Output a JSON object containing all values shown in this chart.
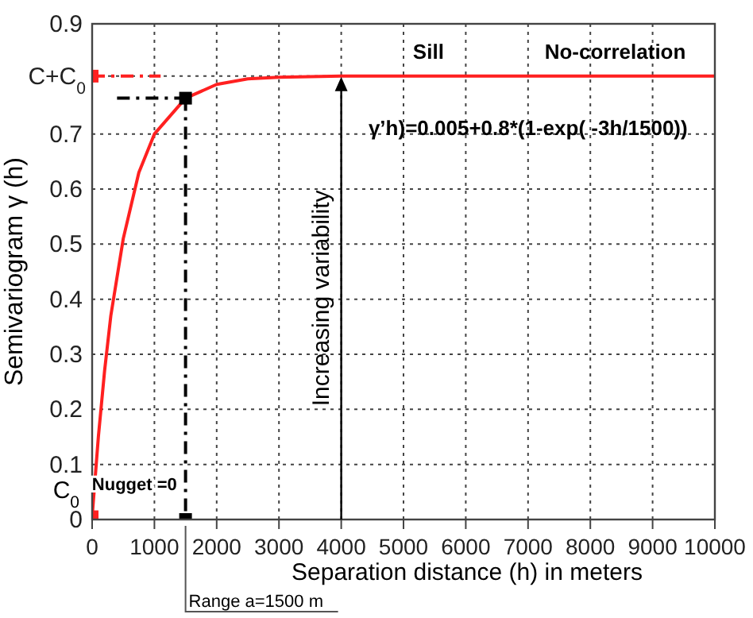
{
  "chart_data": {
    "type": "line",
    "xlabel": "Separation distance (h) in meters",
    "ylabel": "Semivariogram γ (h)",
    "xlim": [
      0,
      10000
    ],
    "xticks": [
      0,
      1000,
      2000,
      3000,
      4000,
      5000,
      6000,
      7000,
      8000,
      9000,
      10000
    ],
    "ylim": [
      0,
      0.9
    ],
    "yticks": [
      0,
      0.1,
      0.2,
      0.3,
      0.4,
      0.5,
      0.6,
      0.7,
      0.9
    ],
    "grid": true,
    "ref_lines": [
      {
        "axis": "y",
        "value": 0.805,
        "label": "C+C$_{0}$",
        "color": "#444444",
        "line_style": "dotted"
      }
    ],
    "series": [
      {
        "color": "#ff2020",
        "marker": "none",
        "line_style": "solid",
        "x": [
          0,
          100,
          200,
          300,
          500,
          750,
          1000,
          1500,
          2000,
          2500,
          3000,
          4000,
          10000
        ],
        "values": [
          0.005,
          0.15,
          0.27,
          0.37,
          0.51,
          0.63,
          0.7,
          0.765,
          0.79,
          0.8,
          0.803,
          0.805,
          0.805
        ]
      },
      {
        "color": "#ff2020",
        "marker": "none",
        "line_style": "dashed",
        "x": [
          0,
          1100
        ],
        "values": [
          0.805,
          0.805
        ]
      },
      {
        "color": "#000000",
        "marker": "none",
        "line_style": "dashed",
        "x": [
          400,
          1500
        ],
        "values": [
          0.765,
          0.765
        ]
      },
      {
        "color": "#000000",
        "marker": "none",
        "line_style": "dashed",
        "x": [
          1500,
          1500
        ],
        "values": [
          0.765,
          0
        ]
      },
      {
        "type": "scatter",
        "color": "#ff2020",
        "marker": "square",
        "x": [
          0,
          0
        ],
        "values": [
          0.805,
          0.005
        ]
      },
      {
        "type": "scatter",
        "color": "#000000",
        "marker": "square",
        "x": [
          1500,
          1500
        ],
        "values": [
          0.765,
          0
        ]
      }
    ],
    "annotations": [
      "Sill",
      "No-correlation",
      "γ’h)=0.005+0.8*(1-exp( -3h/1500))",
      "Increasing variability",
      {
        "text": "C$_{0}$",
        "x": 0,
        "y": 0.005
      },
      "Nugget =0",
      {
        "text": "Range a=1500 m",
        "x": 1500,
        "y": 0
      }
    ]
  }
}
